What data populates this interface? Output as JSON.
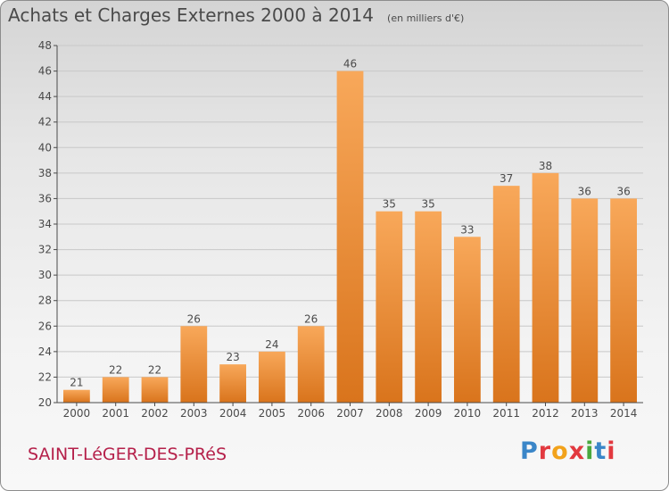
{
  "title": "Achats et Charges Externes 2000 à 2014",
  "unit_note": "(en milliers d'€)",
  "town": "SAINT-LéGER-DES-PRéS",
  "brand": {
    "letters": [
      "P",
      "r",
      "o",
      "x",
      "i",
      "t",
      "i"
    ],
    "colors": [
      "#3a86c8",
      "#e2393f",
      "#f2a21b",
      "#e2393f",
      "#4aa83e",
      "#3a86c8",
      "#e2393f"
    ]
  },
  "colors": {
    "bar_light": "#f8a85a",
    "bar_dark": "#d9741c",
    "grid": "#c8c8c8",
    "axis": "#4a4a4a"
  },
  "chart_data": {
    "type": "bar",
    "title": "Achats et Charges Externes 2000 à 2014",
    "xlabel": "",
    "ylabel": "",
    "categories": [
      "2000",
      "2001",
      "2002",
      "2003",
      "2004",
      "2005",
      "2006",
      "2007",
      "2008",
      "2009",
      "2010",
      "2011",
      "2012",
      "2013",
      "2014"
    ],
    "values": [
      21,
      22,
      22,
      26,
      23,
      24,
      26,
      46,
      35,
      35,
      33,
      37,
      38,
      36,
      36
    ],
    "ylim": [
      20,
      48
    ],
    "yticks": [
      20,
      22,
      24,
      26,
      28,
      30,
      32,
      34,
      36,
      38,
      40,
      42,
      44,
      46,
      48
    ],
    "grid": true,
    "legend": "none",
    "data_labels": true
  }
}
